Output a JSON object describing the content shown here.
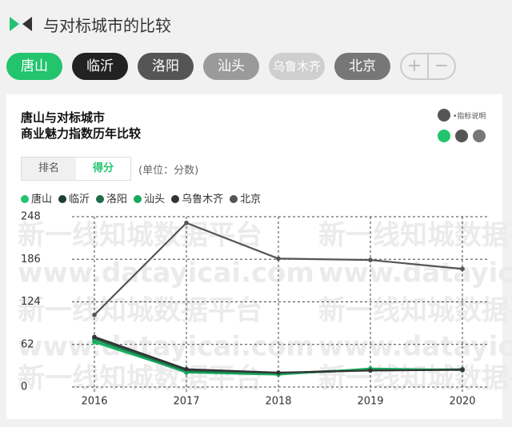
{
  "header": {
    "title": "与对标城市的比较"
  },
  "tabs": [
    "唐山",
    "临沂",
    "洛阳",
    "汕头",
    "乌鲁木齐",
    "北京"
  ],
  "zoom_buttons": [
    "+",
    "−"
  ],
  "card": {
    "title_lines": [
      "唐山与对标城市",
      "商业魅力指数历年比较"
    ],
    "help": "•指标说明",
    "toggle": [
      "排名",
      "得分"
    ],
    "unit": "(单位：分数)"
  },
  "watermark": [
    "新一线知城数据平台",
    "www.datayicai.com"
  ],
  "chart_data": {
    "type": "line",
    "categories": [
      "2016",
      "2017",
      "2018",
      "2019",
      "2020"
    ],
    "series": [
      {
        "name": "唐山",
        "color": "#22c46e",
        "values": [
          65,
          22,
          19,
          25,
          25
        ]
      },
      {
        "name": "临沂",
        "color": "#1c3f30",
        "values": [
          72,
          24,
          20,
          26,
          25
        ]
      },
      {
        "name": "洛阳",
        "color": "#1e6b48",
        "values": [
          70,
          23,
          19,
          25,
          26
        ]
      },
      {
        "name": "汕头",
        "color": "#18a85e",
        "values": [
          67,
          21,
          18,
          27,
          25
        ]
      },
      {
        "name": "乌鲁木齐",
        "color": "#333333",
        "values": [
          73,
          26,
          21,
          24,
          25
        ]
      },
      {
        "name": "北京",
        "color": "#555555",
        "values": [
          105,
          239,
          187,
          185,
          172
        ]
      }
    ],
    "ylim": [
      0,
      248
    ],
    "yticks": [
      0,
      62,
      124,
      186,
      248
    ],
    "grid": true
  }
}
